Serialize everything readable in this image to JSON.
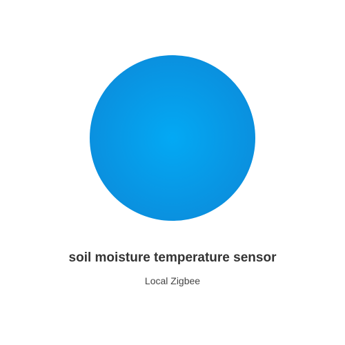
{
  "device": {
    "name": "soil moisture temperature sensor",
    "integration": "Local Zigbee",
    "icon": "device-circle-icon",
    "color": "#0d86d6"
  }
}
